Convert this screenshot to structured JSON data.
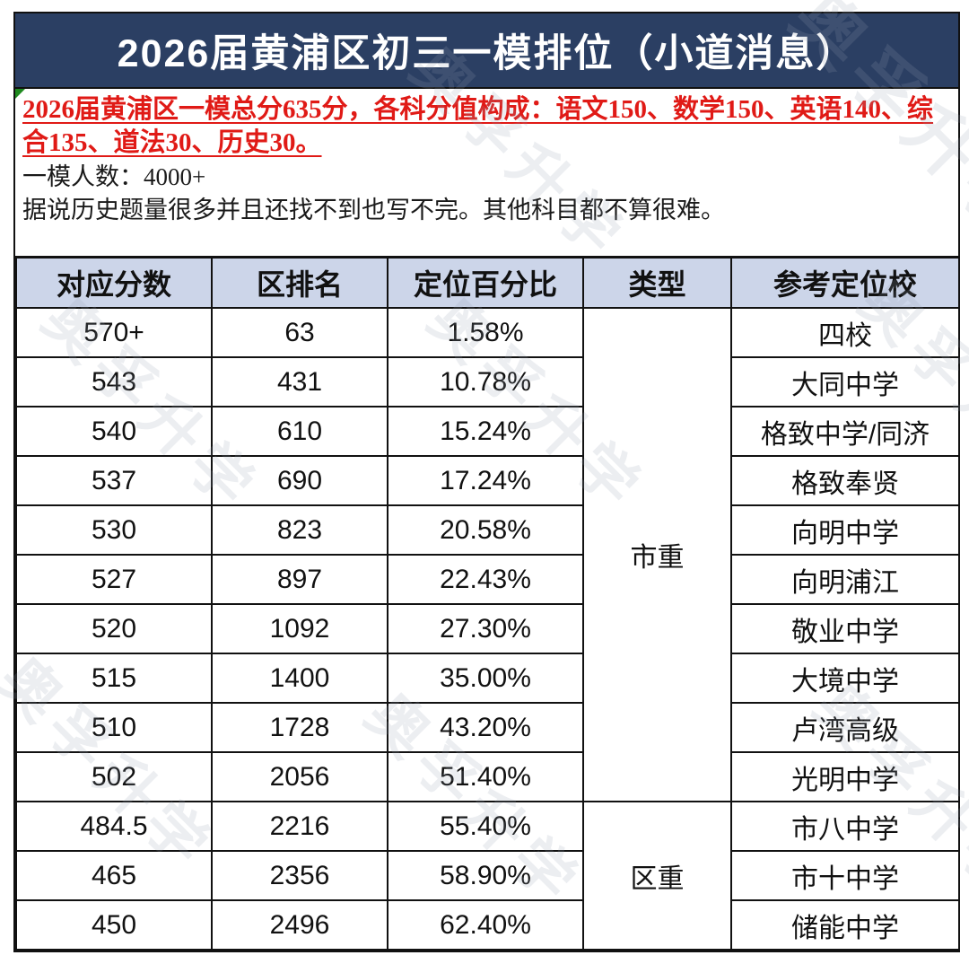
{
  "title": "2026届黄浦区初三一模排位（小道消息）",
  "notes": {
    "red_note": "2026届黄浦区一模总分635分，各科分值构成：语文150、数学150、英语140、综合135、道法30、历史30。",
    "count_note": "一模人数：4000+",
    "difficulty_note": "据说历史题量很多并且还找不到也写不完。其他科目都不算很难。"
  },
  "watermark_text": "奥孚升学",
  "colors": {
    "title_bg": "#2b3f63",
    "header_bg": "#ccd5e9",
    "red_text": "#e01a16",
    "border": "#111111",
    "green_marker": "#1f8a1f"
  },
  "table": {
    "headers": [
      "对应分数",
      "区排名",
      "定位百分比",
      "类型",
      "参考定位校"
    ],
    "rows": [
      {
        "score": "570+",
        "rank": "63",
        "percentile": "1.58%",
        "school": "四校"
      },
      {
        "score": "543",
        "rank": "431",
        "percentile": "10.78%",
        "school": "大同中学"
      },
      {
        "score": "540",
        "rank": "610",
        "percentile": "15.24%",
        "school": "格致中学/同济"
      },
      {
        "score": "537",
        "rank": "690",
        "percentile": "17.24%",
        "school": "格致奉贤"
      },
      {
        "score": "530",
        "rank": "823",
        "percentile": "20.58%",
        "school": "向明中学"
      },
      {
        "score": "527",
        "rank": "897",
        "percentile": "22.43%",
        "school": "向明浦江"
      },
      {
        "score": "520",
        "rank": "1092",
        "percentile": "27.30%",
        "school": "敬业中学"
      },
      {
        "score": "515",
        "rank": "1400",
        "percentile": "35.00%",
        "school": "大境中学"
      },
      {
        "score": "510",
        "rank": "1728",
        "percentile": "43.20%",
        "school": "卢湾高级"
      },
      {
        "score": "502",
        "rank": "2056",
        "percentile": "51.40%",
        "school": "光明中学"
      },
      {
        "score": "484.5",
        "rank": "2216",
        "percentile": "55.40%",
        "school": "市八中学"
      },
      {
        "score": "465",
        "rank": "2356",
        "percentile": "58.90%",
        "school": "市十中学"
      },
      {
        "score": "450",
        "rank": "2496",
        "percentile": "62.40%",
        "school": "储能中学"
      }
    ],
    "type_groups": [
      {
        "label": "市重",
        "start": 0,
        "span": 10
      },
      {
        "label": "区重",
        "start": 10,
        "span": 3
      }
    ]
  }
}
